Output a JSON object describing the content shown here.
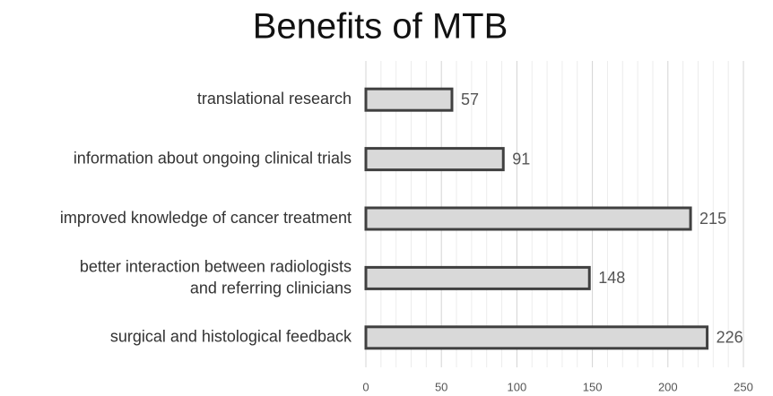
{
  "chart_data": {
    "type": "bar",
    "orientation": "horizontal",
    "title": "Benefits of MTB",
    "categories": [
      "translational research",
      "information about ongoing clinical trials",
      "improved knowledge of cancer treatment",
      "better interaction between radiologists\nand referring clinicians",
      "surgical and histological feedback"
    ],
    "values": [
      57,
      91,
      215,
      148,
      226
    ],
    "color": "#d9d9d9",
    "edge_color": "#404040",
    "xlim": [
      0,
      250
    ],
    "xticks": [
      0,
      50,
      100,
      150,
      200,
      250
    ],
    "minor_xticks": [
      10,
      20,
      30,
      40,
      60,
      70,
      80,
      90,
      110,
      120,
      130,
      140,
      160,
      170,
      180,
      190,
      210,
      220,
      230,
      240
    ],
    "grid": true
  }
}
